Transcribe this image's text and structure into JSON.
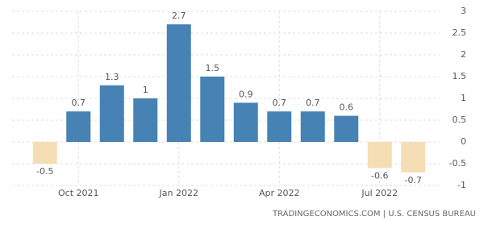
{
  "chart_data": {
    "type": "bar",
    "categories": [
      null,
      "Oct 2021",
      null,
      null,
      "Jan 2022",
      null,
      null,
      "Apr 2022",
      null,
      null,
      "Jul 2022",
      null
    ],
    "values": [
      -0.5,
      0.7,
      1.3,
      1,
      2.7,
      1.5,
      0.9,
      0.7,
      0.7,
      0.6,
      -0.6,
      -0.7
    ],
    "color": "#4682b4",
    "negative_color": "#f5deb3",
    "ylim": [
      -1,
      3
    ],
    "yticks": [
      -1,
      -0.5,
      0,
      0.5,
      1,
      1.5,
      2,
      2.5,
      3
    ],
    "grid": true,
    "source": "TRADINGECONOMICS.COM | U.S. CENSUS BUREAU"
  }
}
